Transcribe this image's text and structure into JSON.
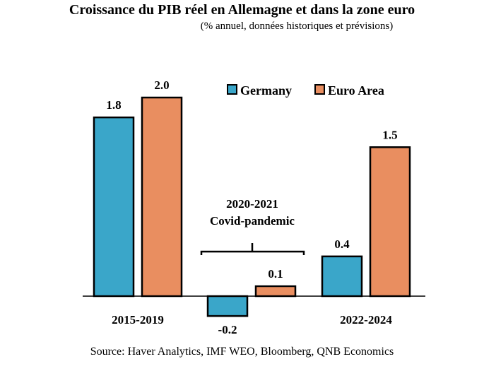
{
  "title": "Croissance du PIB réel en Allemagne et dans la zone euro",
  "subtitle": "(% annuel, données historiques et prévisions)",
  "source": "Source: Haver Analytics, IMF WEO, Bloomberg, QNB Economics",
  "colors": {
    "germany": "#3aa6c9",
    "euro_area": "#e98e60",
    "outline": "#000000"
  },
  "annotation": {
    "line1": "2020-2021",
    "line2": "Covid-pandemic"
  },
  "chart_data": {
    "type": "bar",
    "categories": [
      "2015-2019",
      "2020-2021",
      "2022-2024"
    ],
    "category_labels_shown": [
      "2015-2019",
      "",
      "2022-2024"
    ],
    "series": [
      {
        "name": "Germany",
        "values": [
          1.8,
          -0.2,
          0.4
        ]
      },
      {
        "name": "Euro Area",
        "values": [
          2.0,
          0.1,
          1.5
        ]
      }
    ],
    "value_labels": [
      [
        "1.8",
        "-0.2",
        "0.4"
      ],
      [
        "2.0",
        "0.1",
        "1.5"
      ]
    ],
    "legend_position": "top-right",
    "grid": false,
    "ylim": [
      -0.3,
      2.1
    ]
  }
}
